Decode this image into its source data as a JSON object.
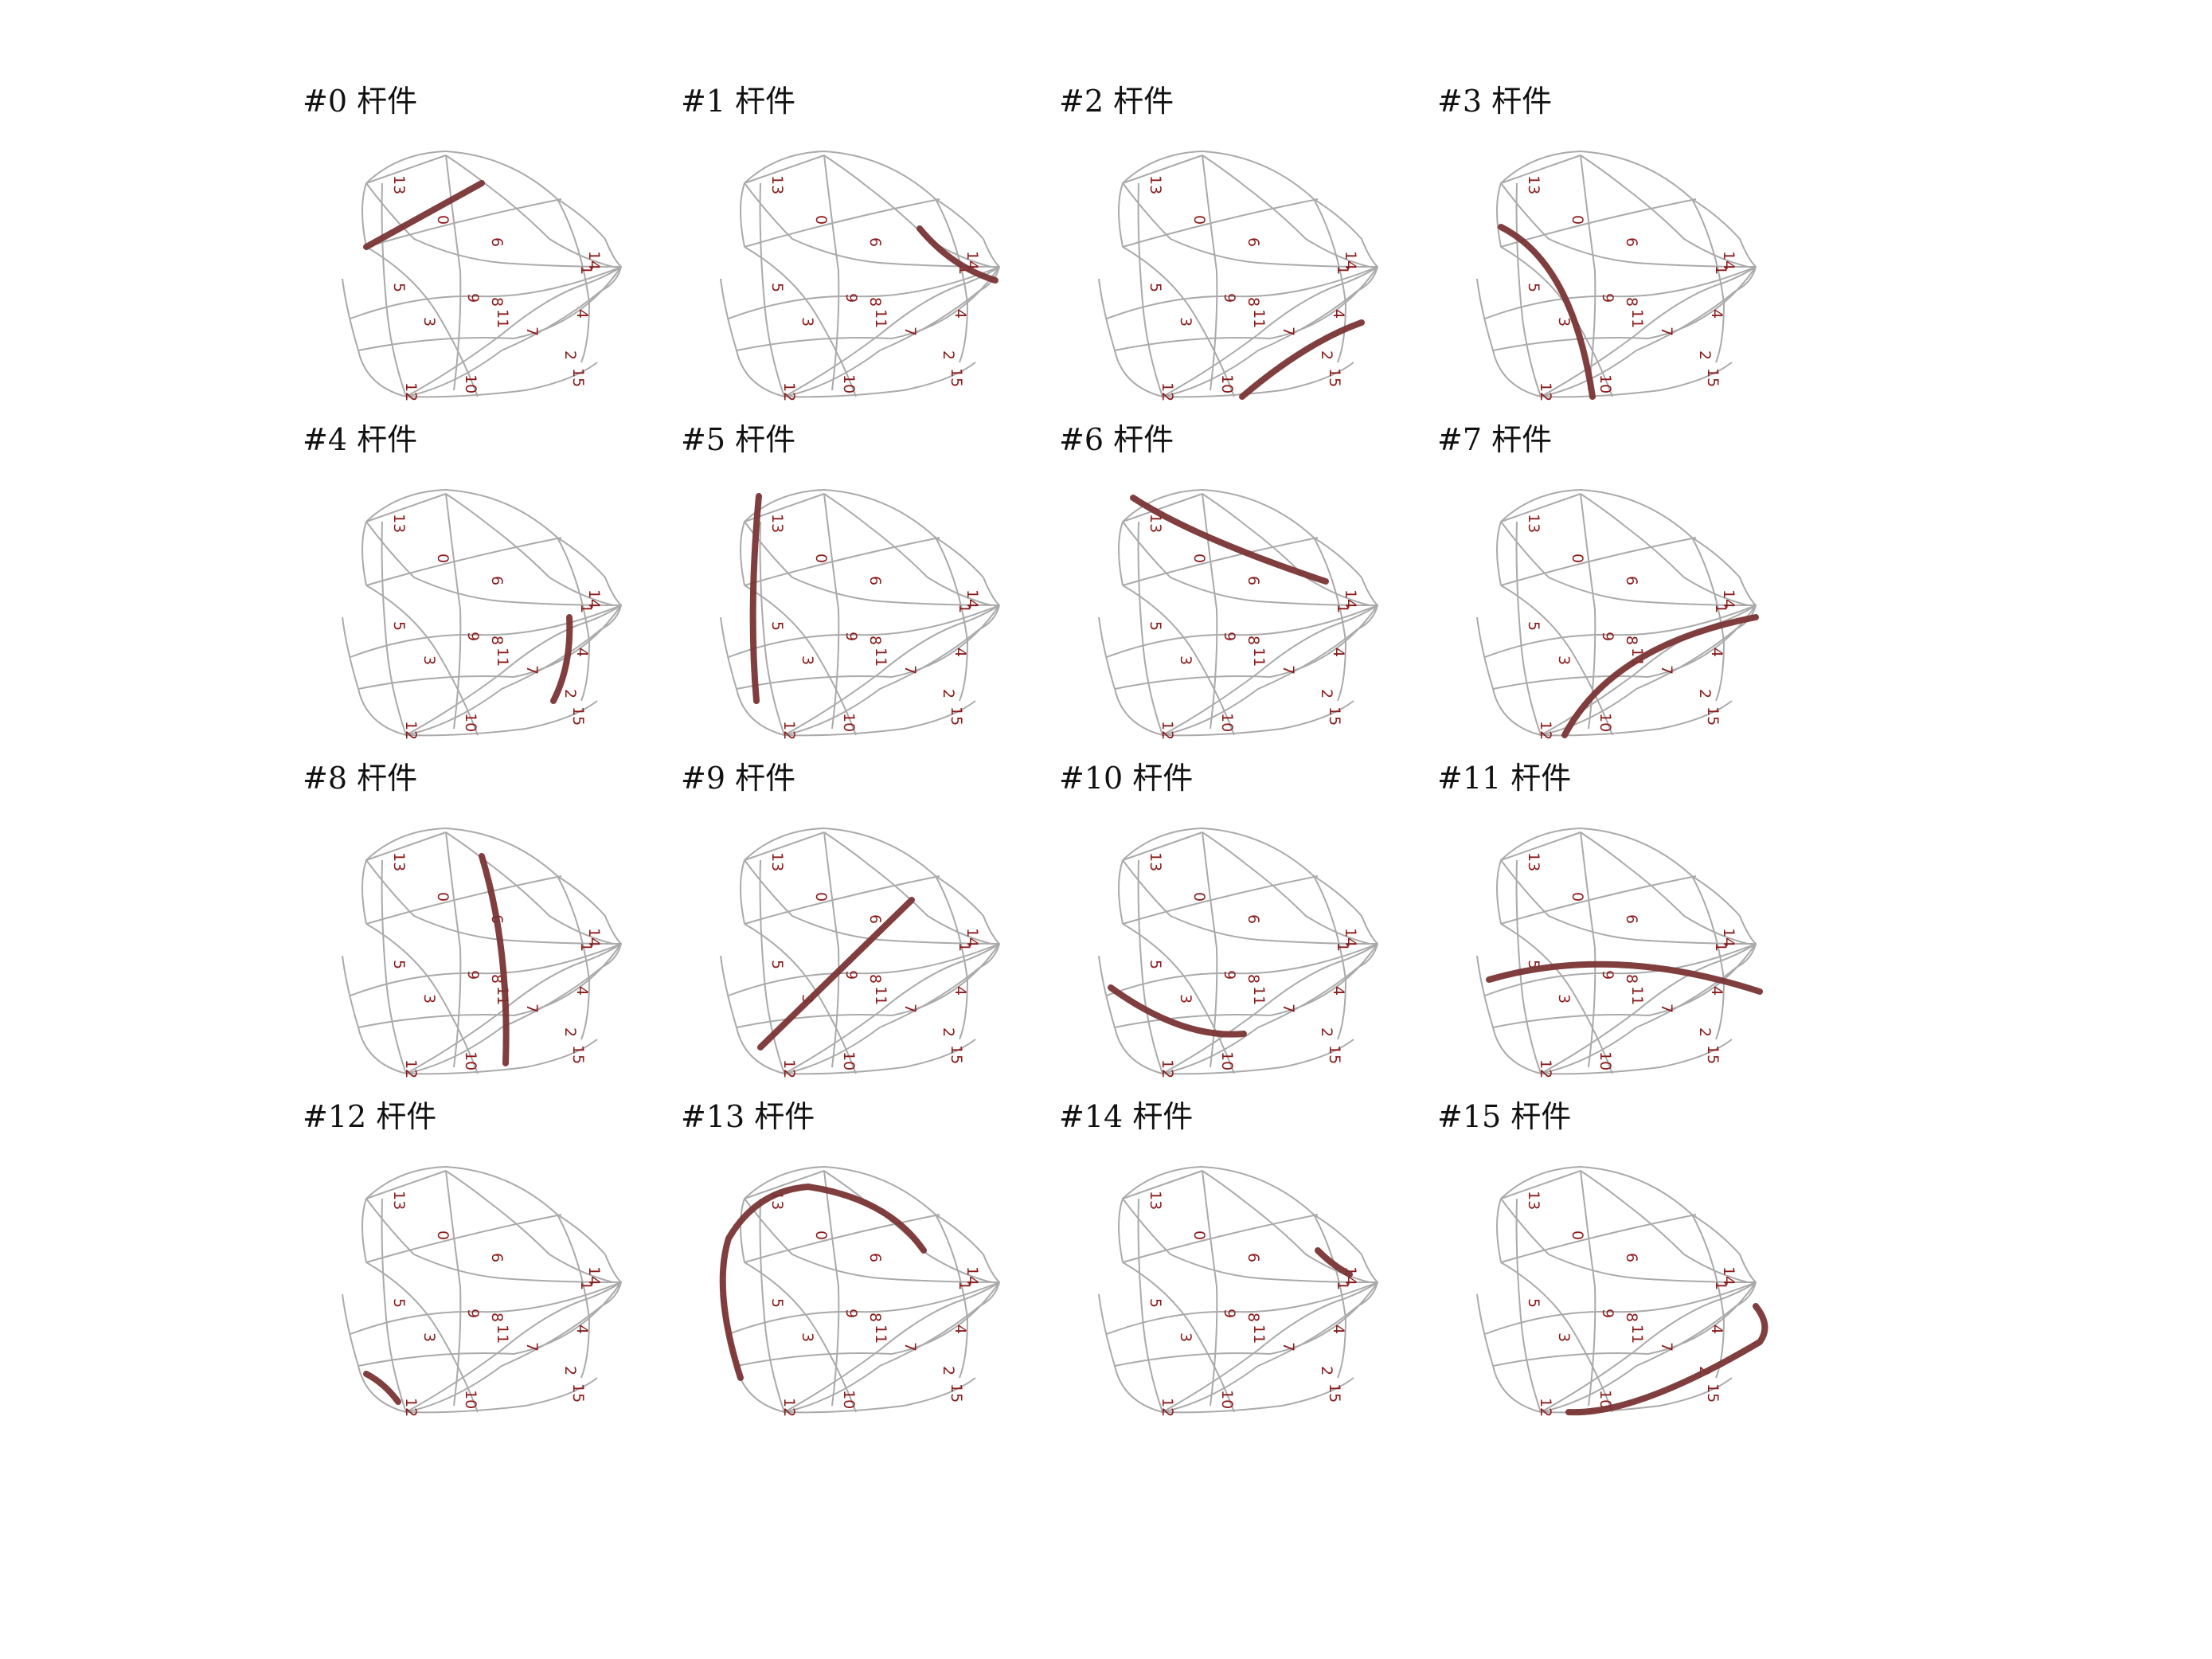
{
  "colors": {
    "background": "#ffffff",
    "mesh": "#aaaaaa",
    "highlight": "#7a3434",
    "label": "#8b1a1a",
    "title": "#111111"
  },
  "title_suffix": "杆件",
  "node_labels": [
    "0",
    "1",
    "2",
    "3",
    "4",
    "5",
    "6",
    "7",
    "8",
    "9",
    "10",
    "11",
    "12",
    "13",
    "14",
    "15"
  ],
  "panels": [
    {
      "title": "#0 杆件",
      "member": 0
    },
    {
      "title": "#1 杆件",
      "member": 1
    },
    {
      "title": "#2 杆件",
      "member": 2
    },
    {
      "title": "#3 杆件",
      "member": 3
    },
    {
      "title": "#4 杆件",
      "member": 4
    },
    {
      "title": "#5 杆件",
      "member": 5
    },
    {
      "title": "#6 杆件",
      "member": 6
    },
    {
      "title": "#7 杆件",
      "member": 7
    },
    {
      "title": "#8 杆件",
      "member": 8
    },
    {
      "title": "#9 杆件",
      "member": 9
    },
    {
      "title": "#10 杆件",
      "member": 10
    },
    {
      "title": "#11 杆件",
      "member": 11
    },
    {
      "title": "#12 杆件",
      "member": 12
    },
    {
      "title": "#13 杆件",
      "member": 13
    },
    {
      "title": "#14 杆件",
      "member": 14
    },
    {
      "title": "#15 杆件",
      "member": 15
    }
  ]
}
